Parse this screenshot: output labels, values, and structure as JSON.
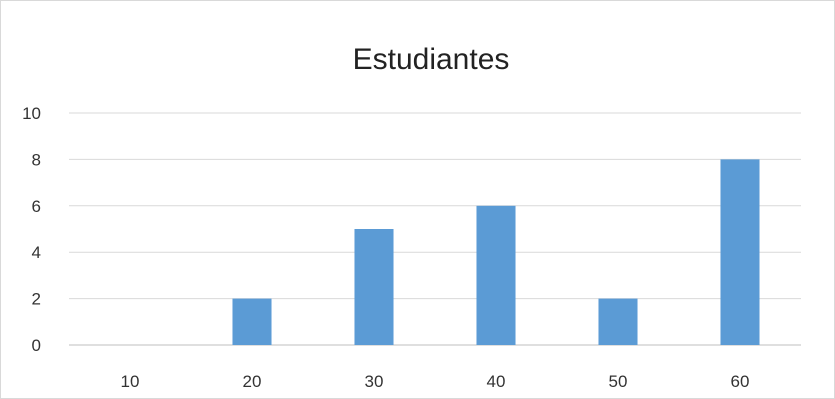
{
  "chart_data": {
    "type": "bar",
    "title": "Estudiantes",
    "xlabel": "",
    "ylabel": "",
    "categories": [
      "10",
      "20",
      "30",
      "40",
      "50",
      "60"
    ],
    "values": [
      0,
      2,
      5,
      6,
      2,
      8
    ],
    "ylim": [
      0,
      10
    ],
    "yticks": [
      0,
      2,
      4,
      6,
      8,
      10
    ],
    "grid": true,
    "legend": "none",
    "bar_color": "#5b9bd5"
  }
}
